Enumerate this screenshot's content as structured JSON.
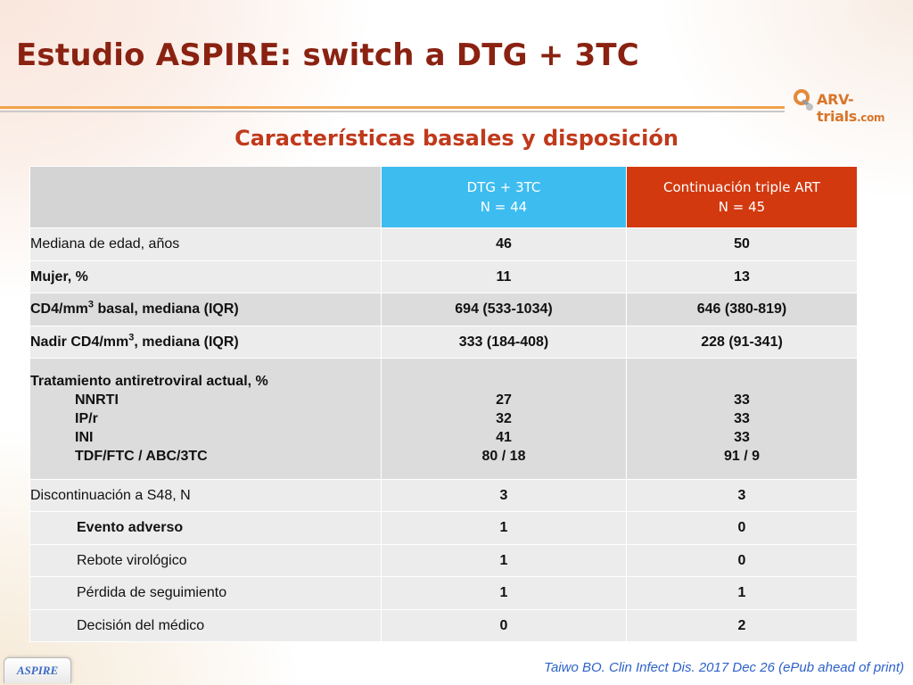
{
  "title": "Estudio ASPIRE: switch a DTG + 3TC",
  "logo": {
    "main": "ARV-trials",
    "suffix": ".com"
  },
  "subtitle": "Características basales y disposición",
  "table": {
    "columns": [
      {
        "line1": "DTG + 3TC",
        "line2": "N = 44",
        "color": "#3dbcf0"
      },
      {
        "line1": "Continuación triple ART",
        "line2": "N = 45",
        "color": "#d2390f"
      }
    ],
    "rows": {
      "age": {
        "label": "Mediana de edad, años",
        "v1": "46",
        "v2": "50"
      },
      "women": {
        "label": "Mujer, %",
        "v1": "11",
        "v2": "13"
      },
      "cd4": {
        "label_pre": "CD4/mm",
        "label_sup": "3",
        "label_post": " basal, mediana (IQR)",
        "v1": "694 (533-1034)",
        "v2": "646 (380-819)"
      },
      "nadir": {
        "label_pre": "Nadir CD4/mm",
        "label_sup": "3",
        "label_post": ", mediana (IQR)",
        "v1": "333 (184-408)",
        "v2": "228 (91-341)"
      },
      "art": {
        "label": "Tratamiento antiretroviral actual, %",
        "sub": [
          "NNRTI",
          "IP/r",
          "INI",
          "TDF/FTC / ABC/3TC"
        ],
        "v1": [
          "27",
          "32",
          "41",
          "80 / 18"
        ],
        "v2": [
          "33",
          "33",
          "33",
          "91 / 9"
        ]
      },
      "disc": {
        "label": "Discontinuación a S48, N",
        "v1": "3",
        "v2": "3"
      },
      "ae": {
        "label": "Evento adverso",
        "v1": "1",
        "v2": "0"
      },
      "rebound": {
        "label": "Rebote virológico",
        "v1": "1",
        "v2": "0"
      },
      "lost": {
        "label": "Pérdida de seguimiento",
        "v1": "1",
        "v2": "1"
      },
      "decision": {
        "label": "Decisión del médico",
        "v1": "0",
        "v2": "2"
      }
    }
  },
  "footer": {
    "tab": "ASPIRE",
    "citation": "Taiwo BO. Clin Infect Dis. 2017 Dec 26 (ePub ahead of print)"
  },
  "colors": {
    "title": "#8a2212",
    "subtitle": "#c0391b",
    "accent_rule": "#f0a24a",
    "citation": "#2d62c8"
  }
}
